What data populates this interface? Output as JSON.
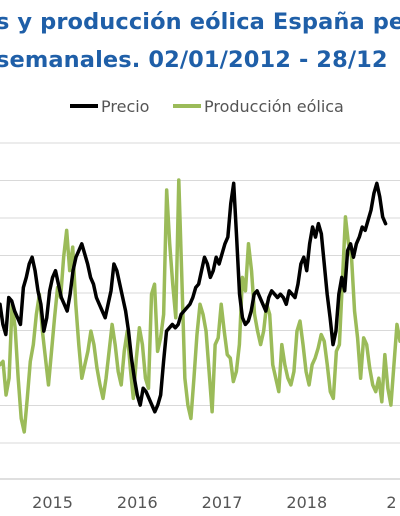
{
  "chart_data": {
    "type": "line",
    "title_line1": "s y producción eólica España pen",
    "title_line2": " semanales. 02/01/2012 - 28/12",
    "x_tick_labels": [
      "2015",
      "2016",
      "2017",
      "2018",
      "2"
    ],
    "x_range": [
      2014.38,
      2019.1
    ],
    "y_range": [
      0,
      100
    ],
    "grid": true,
    "legend_position": "top",
    "series": [
      {
        "name": "Precio",
        "color": "#000000",
        "x_start": 2014.38,
        "x_end": 2018.93,
        "values": [
          52,
          46,
          43,
          54,
          53,
          50,
          48,
          46,
          57,
          60,
          64,
          66,
          62,
          56,
          52,
          44,
          48,
          56,
          60,
          62,
          58,
          54,
          52,
          50,
          55,
          62,
          66,
          68,
          70,
          67,
          64,
          60,
          58,
          54,
          52,
          50,
          48,
          52,
          56,
          64,
          62,
          58,
          54,
          50,
          44,
          36,
          30,
          25,
          22,
          27,
          26,
          24,
          22,
          20,
          22,
          25,
          35,
          44,
          45,
          46,
          45,
          46,
          49,
          50,
          51,
          52,
          54,
          57,
          58,
          62,
          66,
          64,
          60,
          62,
          66,
          64,
          67,
          70,
          72,
          82,
          88,
          72,
          55,
          48,
          46,
          47,
          50,
          55,
          56,
          54,
          52,
          50,
          54,
          56,
          55,
          54,
          55,
          54,
          52,
          56,
          55,
          54,
          58,
          64,
          66,
          62,
          70,
          75,
          72,
          76,
          73,
          64,
          55,
          48,
          40,
          44,
          55,
          60,
          56,
          68,
          70,
          66,
          70,
          72,
          75,
          74,
          77,
          80,
          85,
          88,
          84,
          78,
          76
        ]
      },
      {
        "name": "Producción eólica",
        "color": "#9bbb59",
        "x_start": 2014.38,
        "x_end": 2019.1,
        "values": [
          34,
          35,
          25,
          30,
          52,
          45,
          30,
          18,
          14,
          24,
          35,
          40,
          49,
          55,
          44,
          36,
          28,
          38,
          48,
          57,
          54,
          66,
          74,
          62,
          69,
          52,
          40,
          30,
          34,
          38,
          44,
          40,
          33,
          28,
          24,
          30,
          38,
          46,
          40,
          32,
          28,
          38,
          44,
          33,
          24,
          36,
          45,
          40,
          30,
          27,
          55,
          58,
          38,
          42,
          49,
          86,
          70,
          58,
          48,
          89,
          60,
          30,
          22,
          18,
          30,
          43,
          52,
          49,
          44,
          32,
          20,
          40,
          42,
          52,
          44,
          37,
          36,
          29,
          32,
          40,
          60,
          56,
          70,
          62,
          49,
          44,
          40,
          44,
          52,
          49,
          34,
          30,
          26,
          40,
          34,
          30,
          28,
          32,
          44,
          47,
          40,
          32,
          28,
          34,
          36,
          39,
          43,
          41,
          34,
          26,
          24,
          38,
          40,
          59,
          78,
          70,
          66,
          50,
          42,
          30,
          42,
          40,
          33,
          28,
          26,
          30,
          23,
          37,
          27,
          22,
          34,
          46,
          41
        ]
      }
    ]
  }
}
